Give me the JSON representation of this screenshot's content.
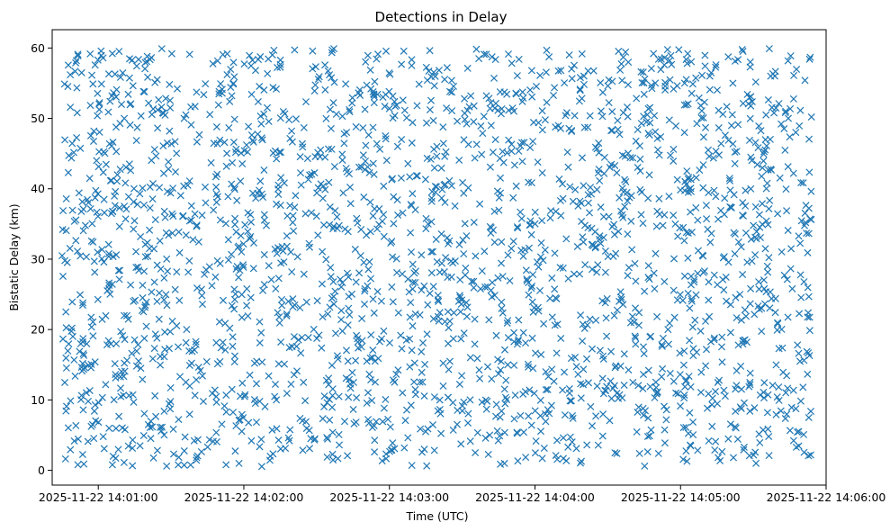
{
  "chart_data": {
    "type": "scatter",
    "title": "Detections in Delay",
    "xlabel": "Time (UTC)",
    "ylabel": "Bistatic Delay (km)",
    "marker": "x",
    "marker_color": "#1f77b4",
    "x_domain": [
      "2025-11-22 14:00:41",
      "2025-11-22 14:06:00"
    ],
    "x_ticks": [
      "2025-11-22 14:01:00",
      "2025-11-22 14:02:00",
      "2025-11-22 14:03:00",
      "2025-11-22 14:04:00",
      "2025-11-22 14:05:00",
      "2025-11-22 14:06:00"
    ],
    "ylim": [
      -2.1,
      62.6
    ],
    "y_ticks": [
      0,
      10,
      20,
      30,
      40,
      50,
      60
    ],
    "y_tick_labels": [
      "0",
      "10",
      "20",
      "30",
      "40",
      "50",
      "60"
    ],
    "grid": false,
    "legend": "none",
    "series": [
      {
        "time_start": "2025-11-22 14:00:45",
        "time_end": "2025-11-22 14:05:54",
        "num_points": 2400,
        "delay_range_km": [
          0.5,
          60
        ],
        "distribution": "approximately uniform in time and delay"
      }
    ]
  }
}
